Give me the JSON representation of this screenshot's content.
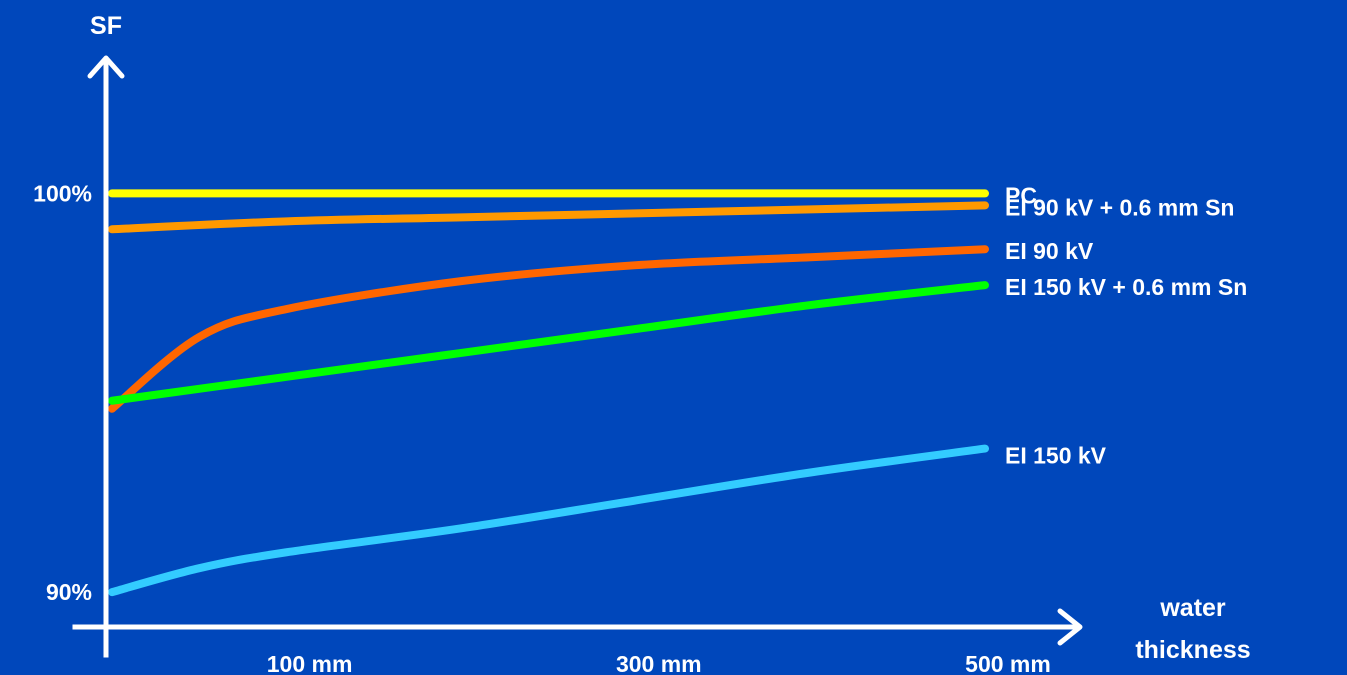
{
  "chart_data": {
    "type": "line",
    "title": "",
    "ylabel": "SF",
    "xlabel": [
      "water",
      "thickness"
    ],
    "x_ticks": [
      {
        "value": 100,
        "label": "100 mm"
      },
      {
        "value": 300,
        "label": "300 mm"
      },
      {
        "value": 500,
        "label": "500 mm"
      }
    ],
    "y_ticks": [
      {
        "value": 100,
        "label": "100%"
      },
      {
        "value": 90,
        "label": "90%"
      }
    ],
    "xlim": [
      0,
      500
    ],
    "ylim": [
      89.0,
      104.5
    ],
    "grid": false,
    "legend": "inline labels at right end of each line",
    "series": [
      {
        "name": "PC",
        "color": "#FFFF00",
        "x": [
          0,
          500
        ],
        "y": [
          100,
          100
        ]
      },
      {
        "name": "EI 90 kV + 0.6 mm Sn",
        "color": "#FF9900",
        "x": [
          0,
          100,
          200,
          300,
          400,
          500
        ],
        "y": [
          99.1,
          99.3,
          99.4,
          99.5,
          99.6,
          99.7
        ]
      },
      {
        "name": "EI 90 kV",
        "color": "#FF6600",
        "x": [
          0,
          50,
          100,
          200,
          300,
          400,
          500
        ],
        "y": [
          94.6,
          96.4,
          97.1,
          97.8,
          98.2,
          98.4,
          98.6
        ]
      },
      {
        "name": "EI 150 kV + 0.6 mm Sn",
        "color": "#00FF00",
        "x": [
          0,
          100,
          200,
          300,
          400,
          500
        ],
        "y": [
          94.8,
          95.4,
          96.0,
          96.6,
          97.2,
          97.7
        ]
      },
      {
        "name": "EI 150 kV",
        "color": "#33CCFF",
        "x": [
          0,
          50,
          100,
          200,
          300,
          400,
          500
        ],
        "y": [
          90.0,
          90.6,
          91.0,
          91.6,
          92.3,
          93.0,
          93.6
        ]
      }
    ]
  },
  "colors": {
    "background": "#0047BB",
    "axis": "#FFFFFF",
    "text": "#FFFFFF"
  }
}
